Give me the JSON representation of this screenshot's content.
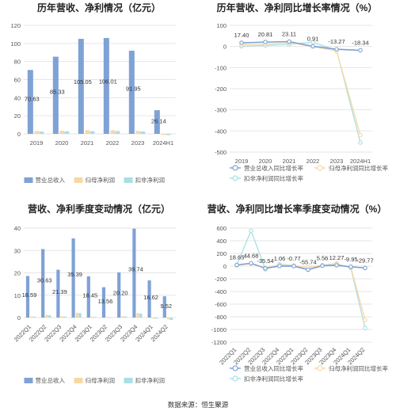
{
  "colors": {
    "revenue": "#7fa2d6",
    "net_profit": "#f9d7a3",
    "deducted_profit": "#a9dfe4"
  },
  "legend_bar": [
    "营业总收入",
    "归母净利润",
    "扣非净利润"
  ],
  "legend_line": [
    "营业总收入同比增长率",
    "归母净利润同比增长率",
    "扣非净利润同比增长率"
  ],
  "source": "数据来源：恒生聚源",
  "chart_data": [
    {
      "type": "bar",
      "title": "历年营收、净利情况（亿元）",
      "categories": [
        "2019",
        "2020",
        "2021",
        "2022",
        "2023",
        "2024H1"
      ],
      "ylim": [
        0,
        120
      ],
      "yticks": [
        0,
        20,
        40,
        60,
        80,
        100,
        120
      ],
      "series": [
        {
          "name": "营业总收入",
          "values": [
            70.63,
            85.33,
            105.05,
            106.01,
            91.95,
            26.14
          ],
          "labels": [
            "70.63",
            "85.33",
            "105.05",
            "106.01",
            "91.95",
            "26.14"
          ]
        },
        {
          "name": "归母净利润",
          "values": [
            3.2,
            3.4,
            4.0,
            3.9,
            3.3,
            -1.2
          ]
        },
        {
          "name": "扣非净利润",
          "values": [
            2.5,
            2.8,
            3.0,
            3.1,
            2.6,
            -1.4
          ]
        }
      ],
      "legend": "bottom"
    },
    {
      "type": "line",
      "title": "历年营收、净利同比增长率情况（%）",
      "categories": [
        "2019",
        "2020",
        "2021",
        "2022",
        "2023",
        "2024H1"
      ],
      "ylim": [
        -500,
        100
      ],
      "yticks": [
        -500,
        -400,
        -300,
        -200,
        -100,
        0,
        100
      ],
      "series": [
        {
          "name": "营业总收入同比增长率",
          "values": [
            17.4,
            20.81,
            23.11,
            0.91,
            -13.27,
            -18.34
          ],
          "labels": [
            "17.40",
            "20.81",
            "23.11",
            "0.91",
            "-13.27",
            "-18.34"
          ]
        },
        {
          "name": "归母净利润同比增长率",
          "values": [
            8,
            12,
            18,
            0,
            -22,
            -420
          ]
        },
        {
          "name": "扣非净利润同比增长率",
          "values": [
            1,
            5,
            10,
            20,
            -18,
            -455
          ]
        }
      ],
      "legend": "bottom"
    },
    {
      "type": "bar",
      "title": "营收、净利季度变动情况（亿元）",
      "categories": [
        "2022Q1",
        "2022Q2",
        "2022Q3",
        "2022Q4",
        "2023Q1",
        "2023Q2",
        "2023Q3",
        "2023Q4",
        "2024Q1",
        "2024Q2"
      ],
      "ylim": [
        0,
        40
      ],
      "yticks": [
        0,
        10,
        20,
        30,
        40
      ],
      "series": [
        {
          "name": "营业总收入",
          "values": [
            18.59,
            30.63,
            21.39,
            35.39,
            18.45,
            13.56,
            20.2,
            39.74,
            16.62,
            9.52
          ],
          "labels": [
            "18.59",
            "30.63",
            "21.39",
            "35.39",
            "18.45",
            "13.56",
            "20.20",
            "39.74",
            "16.62",
            "9.52"
          ]
        },
        {
          "name": "归母净利润",
          "values": [
            0.5,
            1.2,
            0.6,
            2.2,
            0.4,
            0.3,
            0.6,
            2.0,
            -0.4,
            -0.8
          ]
        },
        {
          "name": "扣非净利润",
          "values": [
            0.4,
            1.0,
            0.5,
            2.0,
            0.3,
            0.2,
            0.5,
            1.8,
            -0.5,
            -1.1
          ]
        }
      ],
      "legend": "bottom"
    },
    {
      "type": "line",
      "title": "营收、净利同比增长率季度变动情况（%）",
      "categories": [
        "2022Q1",
        "2022Q2",
        "2022Q3",
        "2022Q4",
        "2023Q1",
        "2023Q2",
        "2023Q3",
        "2023Q4",
        "2024Q1",
        "2024Q2"
      ],
      "ylim": [
        -1200,
        600
      ],
      "yticks": [
        -1200,
        -1000,
        -800,
        -600,
        -400,
        -200,
        0,
        200,
        400,
        600
      ],
      "series": [
        {
          "name": "营业总收入同比增长率",
          "values": [
            18.65,
            44.68,
            -35.54,
            1.06,
            -0.77,
            -55.74,
            5.56,
            12.27,
            -9.95,
            -29.77
          ],
          "labels": [
            "18.65",
            "44.68",
            "-35.54",
            "1.06",
            "-0.77",
            "-55.74",
            "5.56",
            "12.27",
            "-9.95",
            "-29.77"
          ]
        },
        {
          "name": "归母净利润同比增长率",
          "values": [
            10,
            40,
            -30,
            20,
            5,
            -20,
            10,
            30,
            -20,
            -850
          ]
        },
        {
          "name": "扣非净利润同比增长率",
          "values": [
            20,
            560,
            -50,
            30,
            10,
            -60,
            15,
            40,
            -30,
            -980
          ]
        }
      ],
      "legend": "bottom"
    }
  ]
}
